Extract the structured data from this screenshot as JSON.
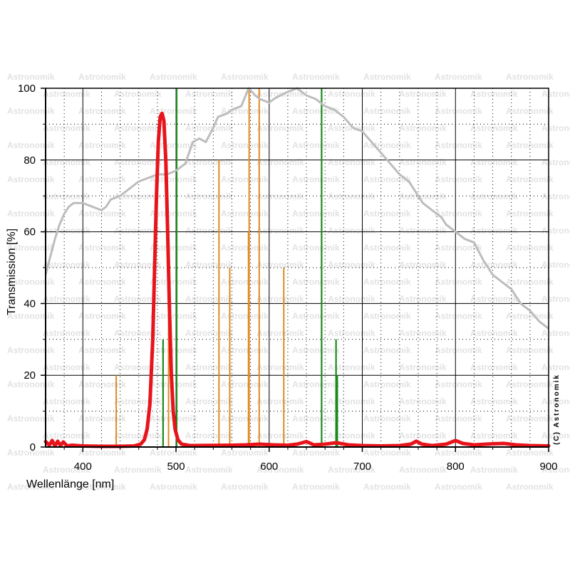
{
  "chart_data": {
    "type": "line",
    "title": "",
    "xlabel": "Wellenlänge [nm]",
    "ylabel": "Transmission [%]",
    "xlim": [
      360,
      900
    ],
    "ylim": [
      0,
      100
    ],
    "x_ticks": [
      400,
      500,
      600,
      700,
      800,
      900
    ],
    "y_ticks": [
      0,
      20,
      40,
      60,
      80,
      100
    ],
    "grid": true,
    "watermark": "Astronomik",
    "credit": "(C) Astronomik",
    "colors": {
      "filter": "#e8141b",
      "sensitivity": "#bdbdbd",
      "green_lines": "#1b8a1b",
      "orange_lines": "#e08a1e",
      "grid": "#000000"
    },
    "series": [
      {
        "role": "filter-transmission",
        "points": [
          [
            360,
            1.5
          ],
          [
            364,
            0.5
          ],
          [
            367,
            1.8
          ],
          [
            370,
            0.3
          ],
          [
            373,
            1.6
          ],
          [
            376,
            0.4
          ],
          [
            379,
            1.4
          ],
          [
            383,
            0.3
          ],
          [
            388,
            0.5
          ],
          [
            400,
            0.3
          ],
          [
            420,
            0.2
          ],
          [
            440,
            0.2
          ],
          [
            455,
            0.3
          ],
          [
            462,
            0.8
          ],
          [
            466,
            2
          ],
          [
            469,
            5
          ],
          [
            472,
            12
          ],
          [
            475,
            30
          ],
          [
            477,
            50
          ],
          [
            479,
            70
          ],
          [
            481,
            85
          ],
          [
            483,
            92
          ],
          [
            485,
            93
          ],
          [
            487,
            91
          ],
          [
            489,
            80
          ],
          [
            491,
            60
          ],
          [
            493,
            38
          ],
          [
            495,
            20
          ],
          [
            497,
            10
          ],
          [
            499,
            5
          ],
          [
            502,
            2
          ],
          [
            506,
            0.8
          ],
          [
            515,
            0.4
          ],
          [
            560,
            0.5
          ],
          [
            575,
            0.6
          ],
          [
            590,
            0.8
          ],
          [
            605,
            0.6
          ],
          [
            620,
            0.5
          ],
          [
            630,
            0.8
          ],
          [
            640,
            1.5
          ],
          [
            648,
            0.6
          ],
          [
            660,
            0.8
          ],
          [
            672,
            1.2
          ],
          [
            685,
            0.6
          ],
          [
            700,
            0.4
          ],
          [
            720,
            0.3
          ],
          [
            740,
            0.4
          ],
          [
            752,
            0.8
          ],
          [
            758,
            1.6
          ],
          [
            764,
            0.8
          ],
          [
            775,
            0.4
          ],
          [
            790,
            0.8
          ],
          [
            800,
            1.8
          ],
          [
            808,
            1.0
          ],
          [
            820,
            0.6
          ],
          [
            840,
            0.9
          ],
          [
            852,
            1.0
          ],
          [
            865,
            0.6
          ],
          [
            880,
            0.4
          ],
          [
            900,
            0.3
          ]
        ]
      },
      {
        "role": "sensor-sensitivity",
        "points": [
          [
            360,
            48
          ],
          [
            365,
            53
          ],
          [
            370,
            58
          ],
          [
            375,
            62
          ],
          [
            380,
            65
          ],
          [
            385,
            67
          ],
          [
            390,
            68
          ],
          [
            400,
            68
          ],
          [
            410,
            67
          ],
          [
            420,
            66
          ],
          [
            425,
            67
          ],
          [
            430,
            69
          ],
          [
            440,
            70
          ],
          [
            450,
            72
          ],
          [
            460,
            74
          ],
          [
            470,
            75
          ],
          [
            480,
            76
          ],
          [
            490,
            76
          ],
          [
            500,
            77
          ],
          [
            510,
            79
          ],
          [
            518,
            85
          ],
          [
            525,
            86
          ],
          [
            532,
            85
          ],
          [
            540,
            89
          ],
          [
            545,
            92
          ],
          [
            555,
            93
          ],
          [
            560,
            94
          ],
          [
            570,
            95
          ],
          [
            578,
            100
          ],
          [
            585,
            98
          ],
          [
            590,
            97
          ],
          [
            600,
            96
          ],
          [
            605,
            97
          ],
          [
            612,
            98
          ],
          [
            620,
            99
          ],
          [
            630,
            100
          ],
          [
            640,
            98
          ],
          [
            650,
            97
          ],
          [
            660,
            95
          ],
          [
            670,
            94
          ],
          [
            680,
            92
          ],
          [
            690,
            89
          ],
          [
            700,
            88
          ],
          [
            710,
            85
          ],
          [
            720,
            82
          ],
          [
            730,
            79
          ],
          [
            740,
            76
          ],
          [
            750,
            74
          ],
          [
            760,
            70
          ],
          [
            765,
            68
          ],
          [
            775,
            66
          ],
          [
            785,
            64
          ],
          [
            790,
            62
          ],
          [
            800,
            60
          ],
          [
            810,
            58
          ],
          [
            820,
            57
          ],
          [
            830,
            52
          ],
          [
            840,
            48
          ],
          [
            850,
            46
          ],
          [
            860,
            44
          ],
          [
            870,
            40
          ],
          [
            880,
            38
          ],
          [
            890,
            35
          ],
          [
            900,
            33
          ]
        ]
      }
    ],
    "spectral_lines": [
      {
        "x": 435.8,
        "y": 20,
        "color": "orange"
      },
      {
        "x": 486.1,
        "y": 30,
        "color": "green"
      },
      {
        "x": 492,
        "y": 40,
        "color": "orange"
      },
      {
        "x": 500.7,
        "y": 100,
        "color": "green"
      },
      {
        "x": 546.1,
        "y": 80,
        "color": "orange"
      },
      {
        "x": 557.7,
        "y": 50,
        "color": "orange"
      },
      {
        "x": 577.8,
        "y": 60,
        "color": "orange"
      },
      {
        "x": 578.5,
        "y": 100,
        "color": "orange"
      },
      {
        "x": 589.3,
        "y": 100,
        "color": "orange"
      },
      {
        "x": 615.7,
        "y": 50,
        "color": "orange"
      },
      {
        "x": 656.3,
        "y": 100,
        "color": "green"
      },
      {
        "x": 671.8,
        "y": 30,
        "color": "green"
      },
      {
        "x": 673.1,
        "y": 20,
        "color": "green"
      }
    ]
  }
}
